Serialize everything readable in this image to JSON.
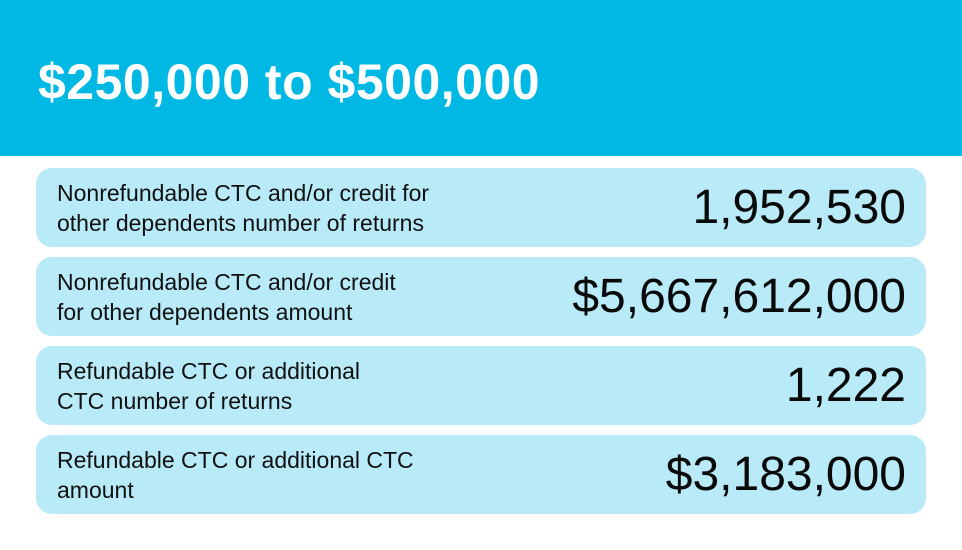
{
  "header": {
    "title": "$250,000 to $500,000",
    "background": "#00b8e4"
  },
  "rows": [
    {
      "label": "Nonrefundable CTC and/or credit for\nother dependents number of returns",
      "value": "1,952,530"
    },
    {
      "label": "Nonrefundable CTC and/or credit\nfor other dependents amount",
      "value": "$5,667,612,000"
    },
    {
      "label": "Refundable CTC or additional\nCTC number of returns",
      "value": "1,222"
    },
    {
      "label": "Refundable CTC or additional CTC\namount",
      "value": "$3,183,000"
    }
  ],
  "colors": {
    "row_background": "#b8eaf8",
    "text": "#111111"
  }
}
